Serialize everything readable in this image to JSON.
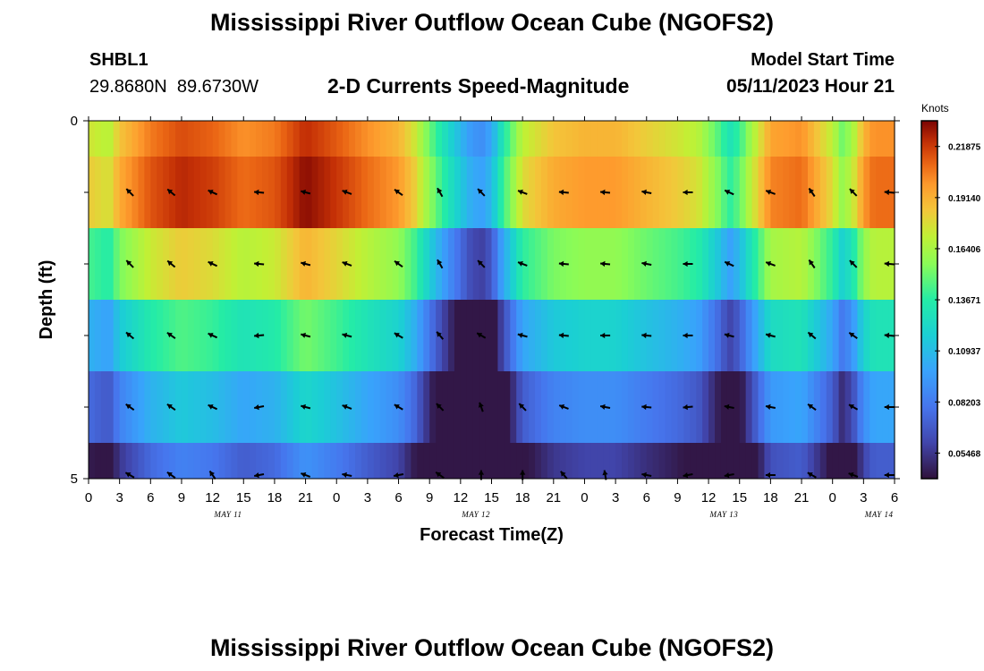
{
  "header": {
    "title": "Mississippi River Outflow Ocean Cube (NGOFS2)",
    "station": "SHBL1",
    "coords": "29.8680N  89.6730W",
    "variable": "2-D Currents Speed-Magnitude",
    "model_start_label": "Model Start Time",
    "model_start_value": "05/11/2023 Hour 21"
  },
  "footer": {
    "title": "Mississippi River Outflow Ocean Cube (NGOFS2)"
  },
  "chart_data": {
    "type": "heatmap",
    "xlabel": "Forecast Time(Z)",
    "ylabel": "Depth (ft)",
    "x_tick_labels": [
      "0",
      "3",
      "6",
      "9",
      "12",
      "15",
      "18",
      "21",
      "0",
      "3",
      "6",
      "9",
      "12",
      "15",
      "18",
      "21",
      "0",
      "3",
      "6",
      "9",
      "12",
      "15",
      "18",
      "21",
      "0",
      "3",
      "6"
    ],
    "date_labels": [
      {
        "text": "MAY 11",
        "hour": 13.5
      },
      {
        "text": "MAY 12",
        "hour": 37.5
      },
      {
        "text": "MAY 13",
        "hour": 61.5
      },
      {
        "text": "MAY 14",
        "hour": 76.5
      }
    ],
    "x_range_hours": [
      0,
      78
    ],
    "y_tick_labels": [
      "0",
      "5"
    ],
    "ylim": [
      0,
      5
    ],
    "y_minor_ticks": [
      1,
      2,
      3,
      4
    ],
    "depth_layers": [
      "0-0.5",
      "0.5-1.5",
      "1.5-2.5",
      "2.5-3.5",
      "3.5-4.5",
      "4.5-5"
    ],
    "colorbar": {
      "unit": "Knots",
      "min": 0.041,
      "max": 0.2325,
      "tick_labels": [
        "0.21875",
        "0.19140",
        "0.16406",
        "0.13671",
        "0.10937",
        "0.08203",
        "0.05468"
      ],
      "tick_values": [
        0.21875,
        0.1914,
        0.16406,
        0.13671,
        0.10937,
        0.08203,
        0.05468
      ]
    },
    "surface_speed_profile": {
      "hours": [
        0,
        2,
        3,
        6,
        9,
        12,
        15,
        18,
        21,
        24,
        27,
        30,
        31.5,
        33,
        35,
        37,
        38,
        39,
        40,
        42,
        45,
        48,
        51,
        54,
        57,
        59,
        61,
        62,
        63,
        64,
        66,
        69,
        72,
        73,
        74,
        75,
        76,
        78
      ],
      "speed": [
        0.175,
        0.168,
        0.185,
        0.205,
        0.215,
        0.21,
        0.2,
        0.205,
        0.222,
        0.212,
        0.2,
        0.19,
        0.175,
        0.15,
        0.12,
        0.095,
        0.09,
        0.1,
        0.13,
        0.17,
        0.185,
        0.19,
        0.19,
        0.182,
        0.175,
        0.168,
        0.145,
        0.13,
        0.14,
        0.16,
        0.195,
        0.2,
        0.17,
        0.15,
        0.165,
        0.19,
        0.2,
        0.2
      ]
    },
    "layer_offsets": [
      0,
      0.008,
      -0.032,
      -0.07,
      -0.1,
      -0.13
    ],
    "layer_minimum": 0.043,
    "vector_hours": [
      4,
      8,
      12,
      16.5,
      21,
      25,
      30,
      34,
      38,
      42,
      46,
      50,
      54,
      58,
      62,
      66,
      70,
      74,
      77.5
    ],
    "vector_depths": [
      1,
      2,
      3,
      4,
      5
    ],
    "vector_angles_deg": [
      [
        135,
        140,
        155,
        175,
        165,
        160,
        145,
        120,
        135,
        160,
        175,
        175,
        170,
        180,
        155,
        160,
        125,
        135,
        175
      ],
      [
        135,
        140,
        155,
        175,
        165,
        160,
        145,
        120,
        135,
        160,
        175,
        175,
        170,
        180,
        155,
        160,
        125,
        135,
        175
      ],
      [
        140,
        145,
        155,
        185,
        165,
        165,
        150,
        130,
        150,
        165,
        175,
        180,
        175,
        180,
        165,
        165,
        140,
        145,
        175
      ],
      [
        145,
        145,
        155,
        190,
        165,
        160,
        150,
        135,
        110,
        135,
        160,
        170,
        175,
        185,
        170,
        170,
        145,
        150,
        180
      ],
      [
        150,
        145,
        125,
        190,
        160,
        170,
        190,
        145,
        90,
        90,
        130,
        100,
        170,
        190,
        190,
        180,
        150,
        160,
        180
      ]
    ]
  }
}
